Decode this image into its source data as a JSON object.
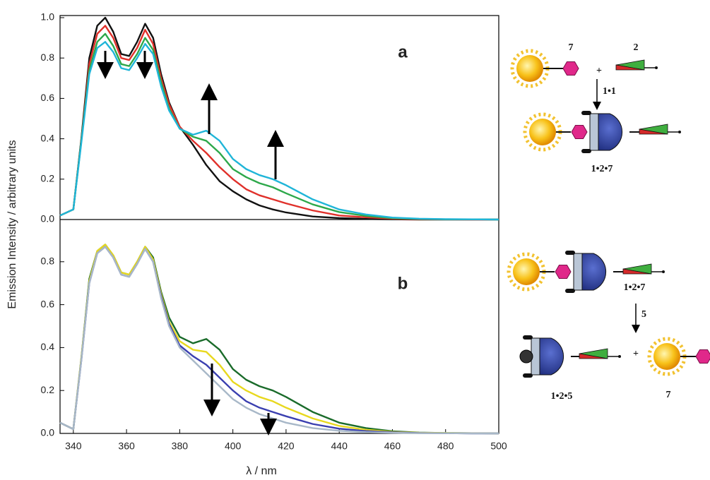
{
  "chart_data": [
    {
      "type": "line",
      "label": "a",
      "ylabel": "Emission Intensity / arbitrary units",
      "xlim": [
        335,
        500
      ],
      "ylim": [
        0,
        1
      ],
      "yticks": [
        {
          "value": 0,
          "label": "0.0"
        },
        0.2,
        0.4,
        0.6,
        0.8,
        {
          "value": 1,
          "label": "1.0"
        }
      ],
      "x": [
        335,
        340,
        343,
        346,
        349,
        352,
        355,
        358,
        361,
        364,
        367,
        370,
        373,
        376,
        380,
        385,
        390,
        395,
        400,
        405,
        410,
        415,
        420,
        430,
        440,
        450,
        460,
        470,
        480,
        490,
        500
      ],
      "series": [
        {
          "color": "#111111",
          "values": [
            0.02,
            0.05,
            0.4,
            0.8,
            0.96,
            1.0,
            0.93,
            0.82,
            0.81,
            0.88,
            0.97,
            0.9,
            0.72,
            0.58,
            0.46,
            0.37,
            0.27,
            0.19,
            0.14,
            0.1,
            0.07,
            0.05,
            0.035,
            0.015,
            0.007,
            0.003,
            0.001,
            0,
            0,
            0,
            0
          ]
        },
        {
          "color": "#e0302a",
          "values": [
            0.02,
            0.05,
            0.39,
            0.77,
            0.92,
            0.96,
            0.9,
            0.8,
            0.79,
            0.85,
            0.94,
            0.87,
            0.7,
            0.57,
            0.46,
            0.39,
            0.33,
            0.26,
            0.2,
            0.15,
            0.12,
            0.1,
            0.08,
            0.045,
            0.02,
            0.011,
            0.004,
            0.001,
            0.001,
            0,
            0
          ]
        },
        {
          "color": "#2da84a",
          "values": [
            0.02,
            0.05,
            0.39,
            0.74,
            0.88,
            0.92,
            0.86,
            0.77,
            0.76,
            0.82,
            0.9,
            0.84,
            0.68,
            0.55,
            0.45,
            0.41,
            0.39,
            0.33,
            0.25,
            0.21,
            0.18,
            0.16,
            0.13,
            0.075,
            0.037,
            0.018,
            0.007,
            0.003,
            0.001,
            0.001,
            0
          ]
        },
        {
          "color": "#1fb5d8",
          "values": [
            0.02,
            0.05,
            0.38,
            0.72,
            0.85,
            0.88,
            0.83,
            0.75,
            0.74,
            0.8,
            0.87,
            0.82,
            0.66,
            0.54,
            0.45,
            0.42,
            0.44,
            0.39,
            0.3,
            0.25,
            0.22,
            0.2,
            0.17,
            0.1,
            0.05,
            0.025,
            0.01,
            0.004,
            0.002,
            0.001,
            0
          ]
        }
      ]
    },
    {
      "type": "line",
      "label": "b",
      "xlabel": "λ / nm",
      "xlim": [
        335,
        500
      ],
      "ylim": [
        0,
        1
      ],
      "xticks": [
        340,
        360,
        380,
        400,
        420,
        440,
        460,
        480,
        500
      ],
      "yticks": [
        {
          "value": 0,
          "label": "0.0"
        },
        0.2,
        0.4,
        0.6,
        0.8
      ],
      "x": [
        335,
        340,
        343,
        346,
        349,
        352,
        355,
        358,
        361,
        364,
        367,
        370,
        373,
        376,
        380,
        385,
        390,
        395,
        400,
        405,
        410,
        415,
        420,
        430,
        440,
        450,
        460,
        470,
        480,
        490,
        500
      ],
      "series": [
        {
          "color": "#1a6b2a",
          "values": [
            0.05,
            0.02,
            0.35,
            0.72,
            0.85,
            0.88,
            0.83,
            0.75,
            0.74,
            0.8,
            0.87,
            0.82,
            0.66,
            0.54,
            0.45,
            0.42,
            0.44,
            0.39,
            0.3,
            0.25,
            0.22,
            0.2,
            0.17,
            0.1,
            0.05,
            0.025,
            0.01,
            0.004,
            0.002,
            0.001,
            0
          ]
        },
        {
          "color": "#e8d81e",
          "values": [
            0.05,
            0.02,
            0.35,
            0.71,
            0.85,
            0.88,
            0.83,
            0.75,
            0.74,
            0.8,
            0.87,
            0.81,
            0.65,
            0.52,
            0.43,
            0.39,
            0.38,
            0.32,
            0.24,
            0.2,
            0.17,
            0.15,
            0.12,
            0.07,
            0.035,
            0.017,
            0.007,
            0.003,
            0.002,
            0.001,
            0
          ]
        },
        {
          "color": "#3a3fb0",
          "values": [
            0.05,
            0.02,
            0.34,
            0.7,
            0.84,
            0.87,
            0.82,
            0.74,
            0.73,
            0.79,
            0.86,
            0.8,
            0.64,
            0.51,
            0.41,
            0.36,
            0.32,
            0.26,
            0.2,
            0.15,
            0.12,
            0.1,
            0.08,
            0.044,
            0.022,
            0.011,
            0.005,
            0.002,
            0.001,
            0,
            0
          ]
        },
        {
          "color": "#a8b8c8",
          "values": [
            0.05,
            0.02,
            0.34,
            0.7,
            0.84,
            0.87,
            0.82,
            0.74,
            0.73,
            0.79,
            0.86,
            0.8,
            0.63,
            0.5,
            0.4,
            0.34,
            0.28,
            0.22,
            0.16,
            0.12,
            0.09,
            0.07,
            0.05,
            0.025,
            0.012,
            0.006,
            0.003,
            0.001,
            0.001,
            0,
            0
          ]
        }
      ]
    }
  ],
  "scheme": {
    "top": {
      "guest": "7",
      "plus": "+",
      "ligand": "2",
      "arrow": "1•1",
      "product": "1•2•7"
    },
    "bottom": {
      "reactant": "1•2•7",
      "arrow": "5",
      "product": "1•2•5",
      "plus": "+",
      "released": "7"
    }
  }
}
